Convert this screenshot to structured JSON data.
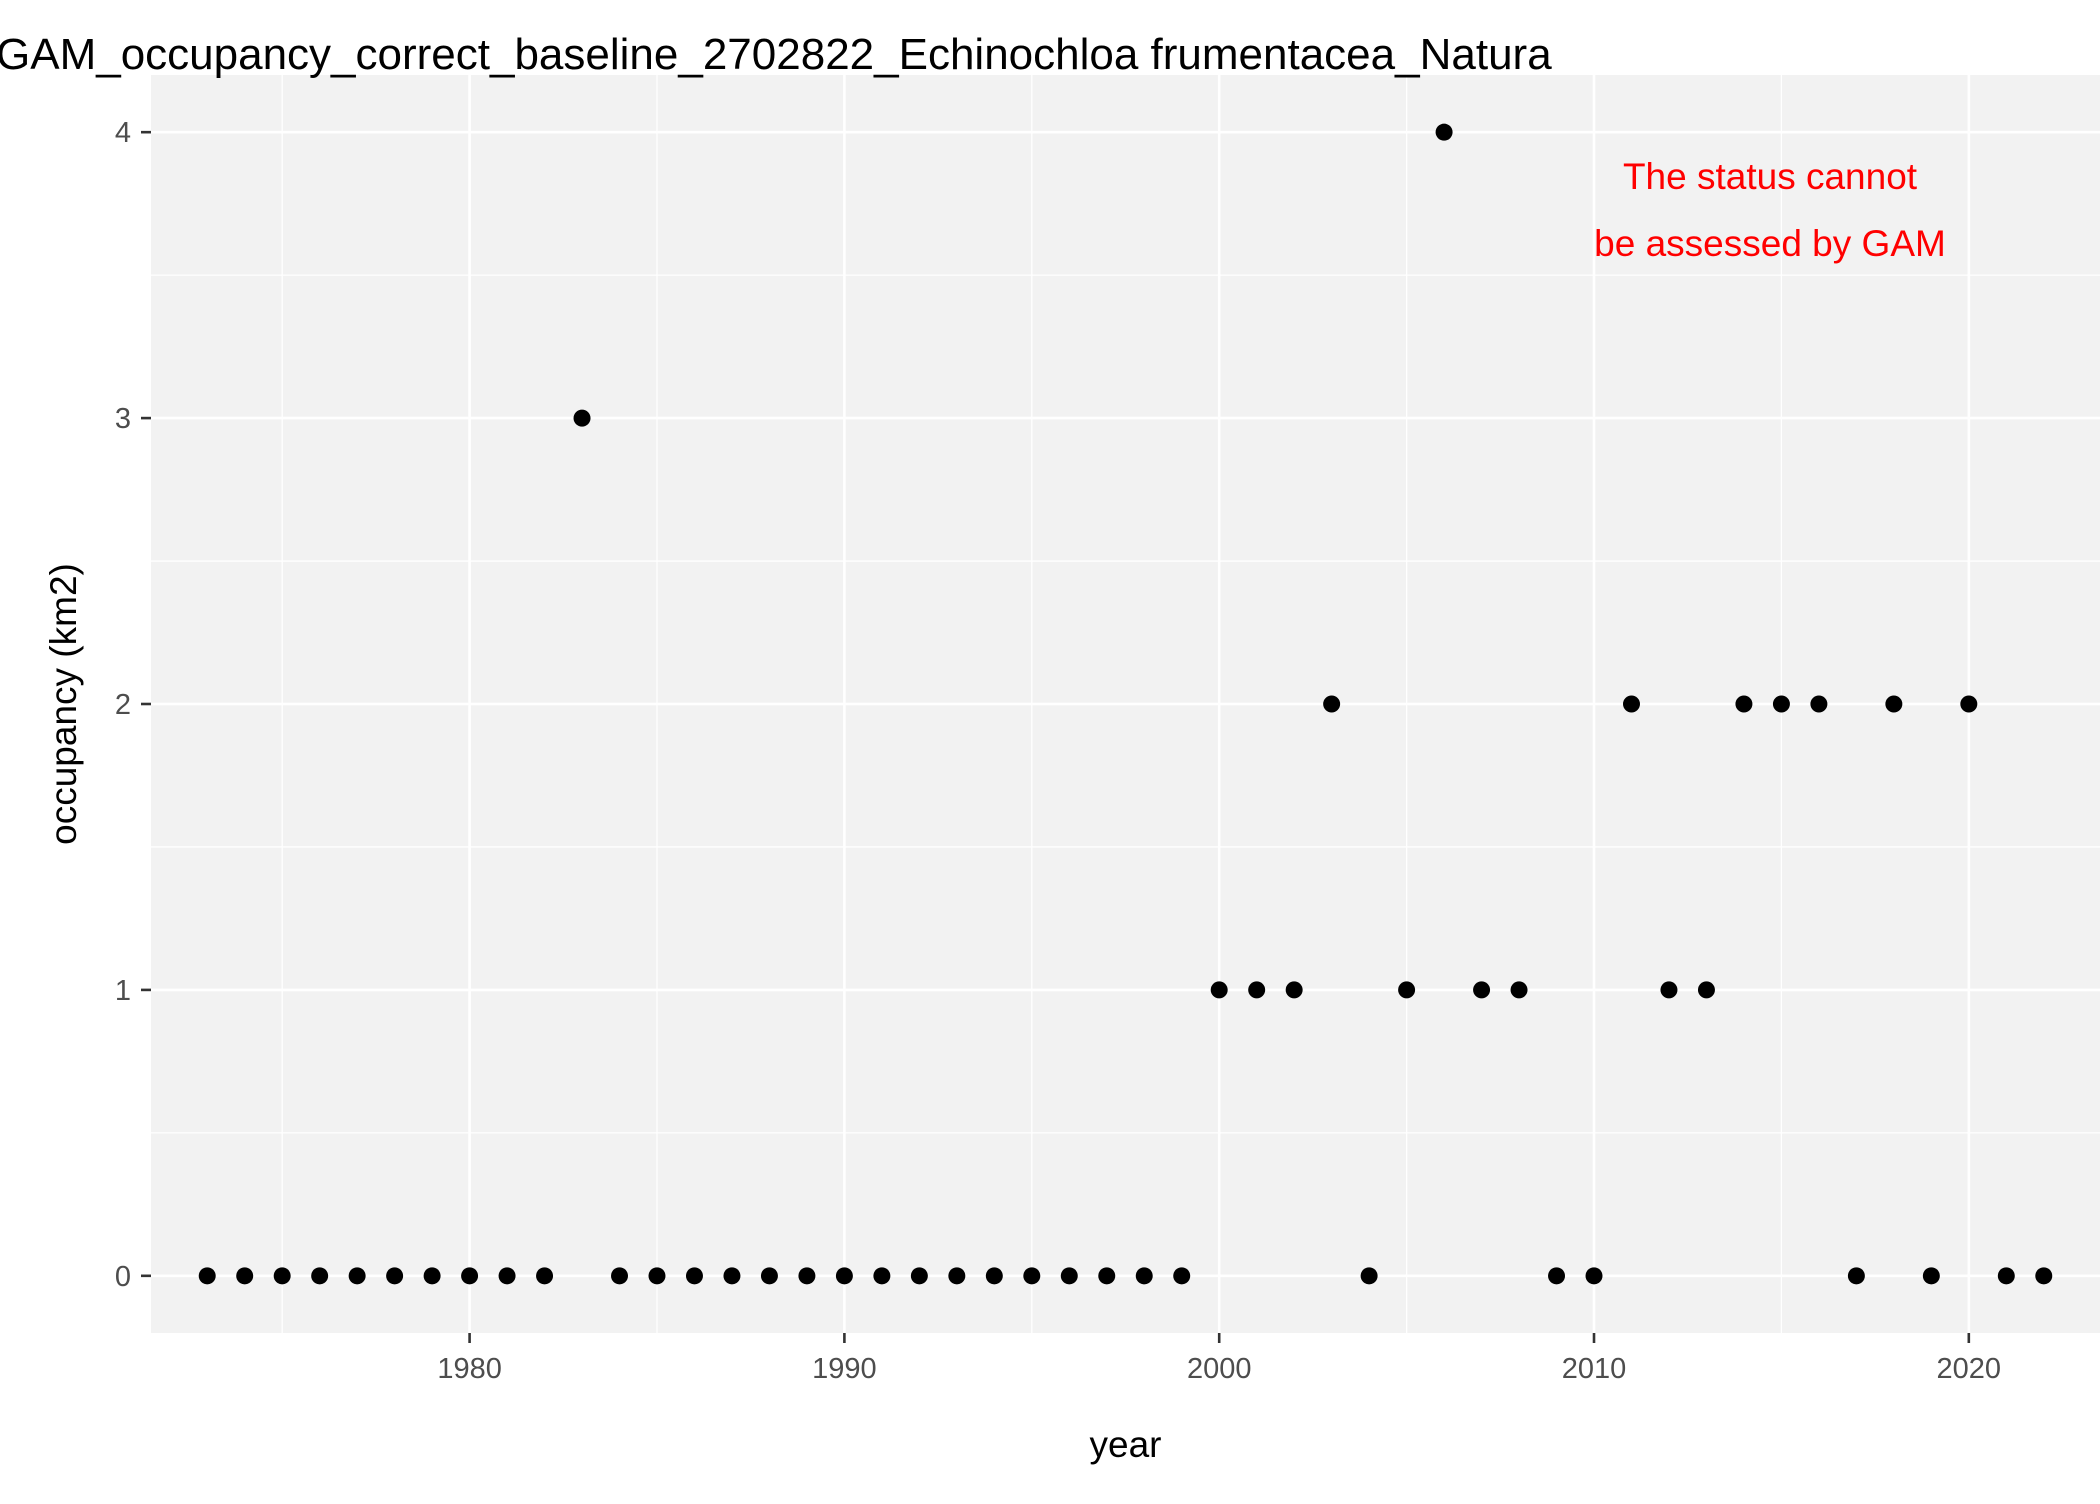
{
  "chart_data": {
    "type": "scatter",
    "title": "GAM_occupancy_correct_baseline_2702822_Echinochloa frumentacea_Natura",
    "xlabel": "year",
    "ylabel": "occupancy (km2)",
    "annotation": [
      "The status cannot",
      "be assessed by GAM"
    ],
    "xlim": [
      1971.5,
      2023.5
    ],
    "ylim": [
      -0.2,
      4.2
    ],
    "x_ticks": [
      1980,
      1990,
      2000,
      2010,
      2020
    ],
    "y_ticks": [
      0,
      1,
      2,
      3,
      4
    ],
    "grid": true,
    "legend": "none",
    "colors": {
      "panel": "#f2f2f2",
      "grid": "#ffffff",
      "point": "#000000",
      "annotation": "#ff0000",
      "text": "#000000",
      "tick_text": "#4d4d4d"
    },
    "x": [
      1973,
      1974,
      1975,
      1976,
      1977,
      1978,
      1979,
      1980,
      1981,
      1982,
      1983,
      1984,
      1985,
      1986,
      1987,
      1988,
      1989,
      1990,
      1991,
      1992,
      1993,
      1994,
      1995,
      1996,
      1997,
      1998,
      1999,
      2000,
      2001,
      2002,
      2003,
      2004,
      2005,
      2006,
      2007,
      2008,
      2009,
      2010,
      2011,
      2012,
      2013,
      2014,
      2015,
      2016,
      2017,
      2018,
      2019,
      2020,
      2021,
      2022
    ],
    "y": [
      0,
      0,
      0,
      0,
      0,
      0,
      0,
      0,
      0,
      0,
      3,
      0,
      0,
      0,
      0,
      0,
      0,
      0,
      0,
      0,
      0,
      0,
      0,
      0,
      0,
      0,
      0,
      1,
      1,
      1,
      2,
      0,
      1,
      4,
      1,
      1,
      0,
      0,
      2,
      1,
      1,
      2,
      2,
      2,
      0,
      2,
      0,
      2,
      0,
      0
    ]
  }
}
